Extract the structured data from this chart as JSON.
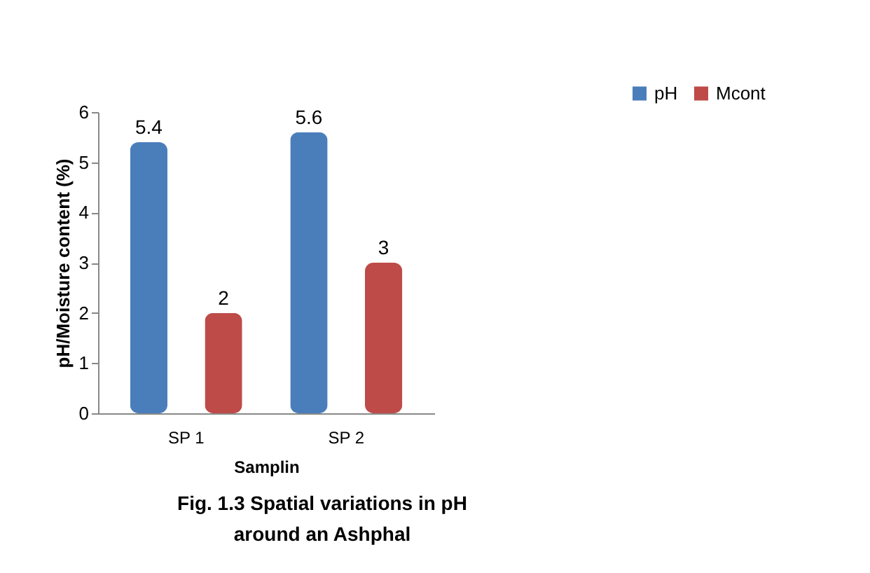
{
  "chart_data": {
    "type": "bar",
    "categories": [
      "SP 1",
      "SP 2"
    ],
    "series": [
      {
        "name": "pH",
        "color": "#4a7ebb",
        "values": [
          5.4,
          5.6
        ]
      },
      {
        "name": "Mcont",
        "color": "#be4b48",
        "values": [
          2,
          3
        ]
      }
    ],
    "xlabel": "Samplin",
    "ylabel": "pH/Moisture content (%)",
    "ylim": [
      0,
      6
    ],
    "yticks": [
      0,
      1,
      2,
      3,
      4,
      5,
      6
    ],
    "data_labels": true,
    "legend": "top right",
    "annotations": [
      "Fig. 1.3 Spatial variations in pH",
      "around an Ashphal"
    ]
  }
}
